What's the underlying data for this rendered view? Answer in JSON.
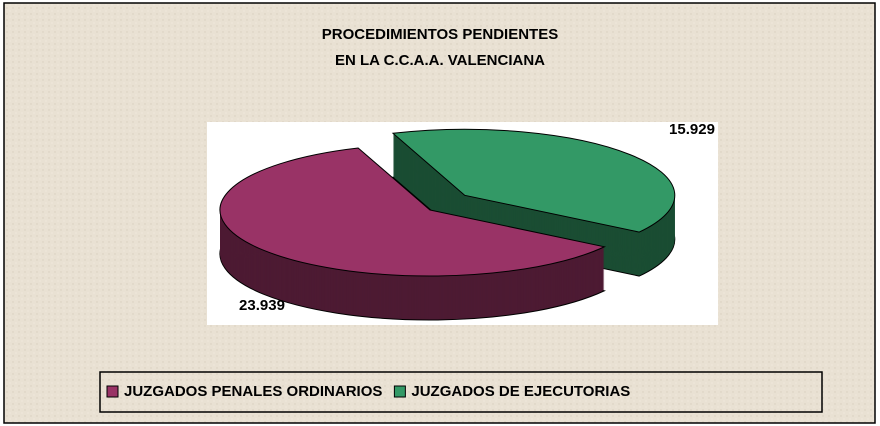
{
  "chart_data": {
    "type": "pie3d",
    "title": [
      "PROCEDIMIENTOS PENDIENTES",
      "EN LA C.C.A.A. VALENCIANA"
    ],
    "categories": [
      "JUZGADOS PENALES ORDINARIOS",
      "JUZGADOS DE EJECUTORIAS"
    ],
    "values": [
      23939,
      15929
    ],
    "value_labels": [
      "23.939",
      "15.929"
    ],
    "colors": [
      "#993366",
      "#339966"
    ],
    "legend": "bottom"
  }
}
